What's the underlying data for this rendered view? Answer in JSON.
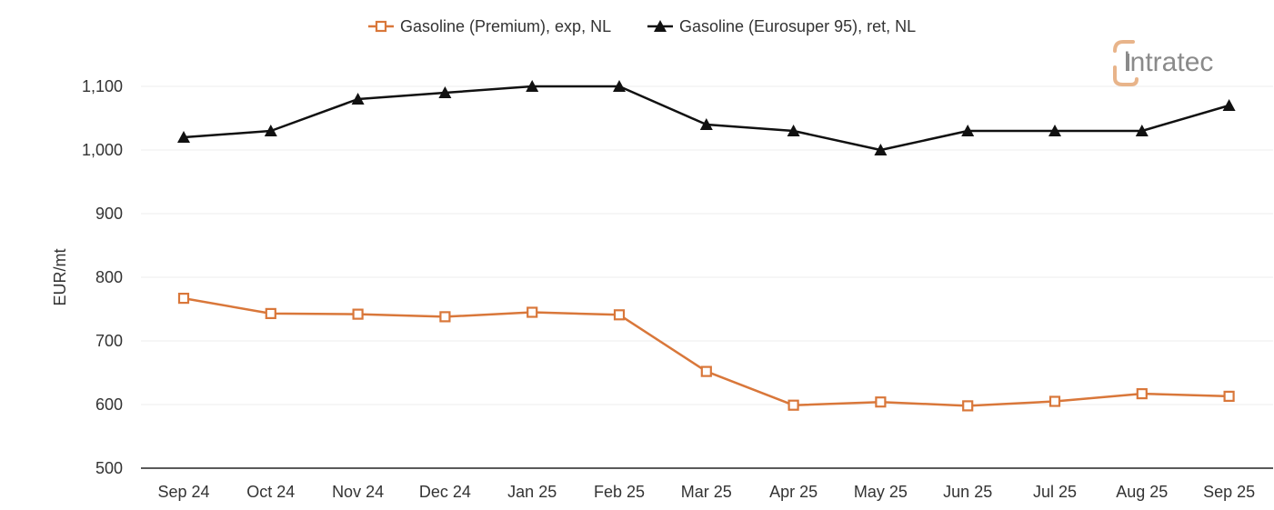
{
  "chart_data": {
    "type": "line",
    "title": "",
    "xlabel": "",
    "ylabel": "EUR/mt",
    "ylim": [
      500,
      1150
    ],
    "yticks": [
      500,
      600,
      700,
      800,
      900,
      1000,
      1100
    ],
    "ytick_labels": [
      "500",
      "600",
      "700",
      "800",
      "900",
      "1,000",
      "1,100"
    ],
    "grid": "horizontal",
    "legend_position": "top-center",
    "categories": [
      "Sep 24",
      "Oct 24",
      "Nov 24",
      "Dec 24",
      "Jan 25",
      "Feb 25",
      "Mar 25",
      "Apr 25",
      "May 25",
      "Jun 25",
      "Jul 25",
      "Aug 25",
      "Sep 25"
    ],
    "series": [
      {
        "name": "Gasoline (Premium), exp, NL",
        "color": "#d9773a",
        "marker": "open-square",
        "values": [
          767,
          743,
          742,
          738,
          745,
          741,
          652,
          599,
          604,
          598,
          605,
          617,
          613
        ]
      },
      {
        "name": "Gasoline (Eurosuper 95), ret, NL",
        "color": "#111111",
        "marker": "filled-triangle",
        "values": [
          1020,
          1030,
          1080,
          1090,
          1100,
          1100,
          1040,
          1030,
          1000,
          1030,
          1030,
          1030,
          1070
        ]
      }
    ]
  },
  "branding": {
    "logo_text": "intratec",
    "logo_first_letter_color": "#e8b48a"
  }
}
